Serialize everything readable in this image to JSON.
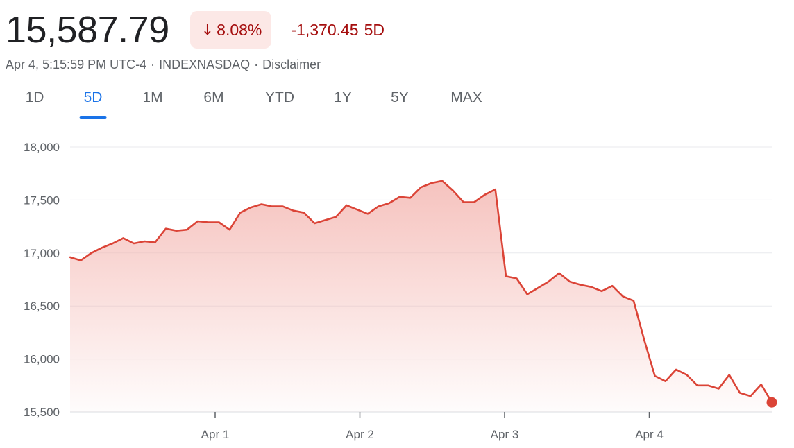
{
  "header": {
    "price": "15,587.79",
    "pct_arrow": "↓",
    "pct_change": "8.08%",
    "abs_change": "-1,370.45",
    "range_label": "5D"
  },
  "meta": {
    "timestamp": "Apr 4, 5:15:59 PM UTC-4",
    "sep1": "·",
    "exchange": "INDEXNASDAQ",
    "sep2": "·",
    "disclaimer": "Disclaimer"
  },
  "tabs": [
    {
      "label": "1D"
    },
    {
      "label": "5D",
      "active": true
    },
    {
      "label": "1M"
    },
    {
      "label": "6M"
    },
    {
      "label": "YTD"
    },
    {
      "label": "1Y"
    },
    {
      "label": "5Y"
    },
    {
      "label": "MAX"
    }
  ],
  "colors": {
    "line": "#db4437",
    "fill_top": "#f4b8b3",
    "grid": "#e8eaed",
    "axis": "#5f6368",
    "negative_text": "#a50e0e",
    "badge_bg": "#fce8e6",
    "active_tab": "#1a73e8"
  },
  "chart_data": {
    "type": "area",
    "x_labels": [
      "Apr 1",
      "Apr 2",
      "Apr 3",
      "Apr 4"
    ],
    "y_ticks": [
      "18,000",
      "17,500",
      "17,000",
      "16,500",
      "16,000",
      "15,500"
    ],
    "ylim": [
      15500,
      18000
    ],
    "grid": true,
    "last_point_marker": true,
    "series": [
      {
        "values": [
          16960,
          16930,
          17000,
          17050,
          17090,
          17140,
          17090,
          17110,
          17100,
          17230,
          17210,
          17220,
          17300,
          17290,
          17290,
          17220,
          17380,
          17430,
          17460,
          17440,
          17440,
          17400,
          17380,
          17280,
          17310,
          17340,
          17450,
          17410,
          17370,
          17440,
          17470,
          17530,
          17520,
          17620,
          17660,
          17680,
          17590,
          17480,
          17480,
          17550,
          17600,
          16780,
          16760,
          16610,
          16670,
          16730,
          16810,
          16730,
          16700,
          16680,
          16640,
          16690,
          16590,
          16550,
          16180,
          15840,
          15790,
          15900,
          15850,
          15750,
          15750,
          15720,
          15850,
          15680,
          15650,
          15760,
          15590
        ]
      }
    ]
  }
}
